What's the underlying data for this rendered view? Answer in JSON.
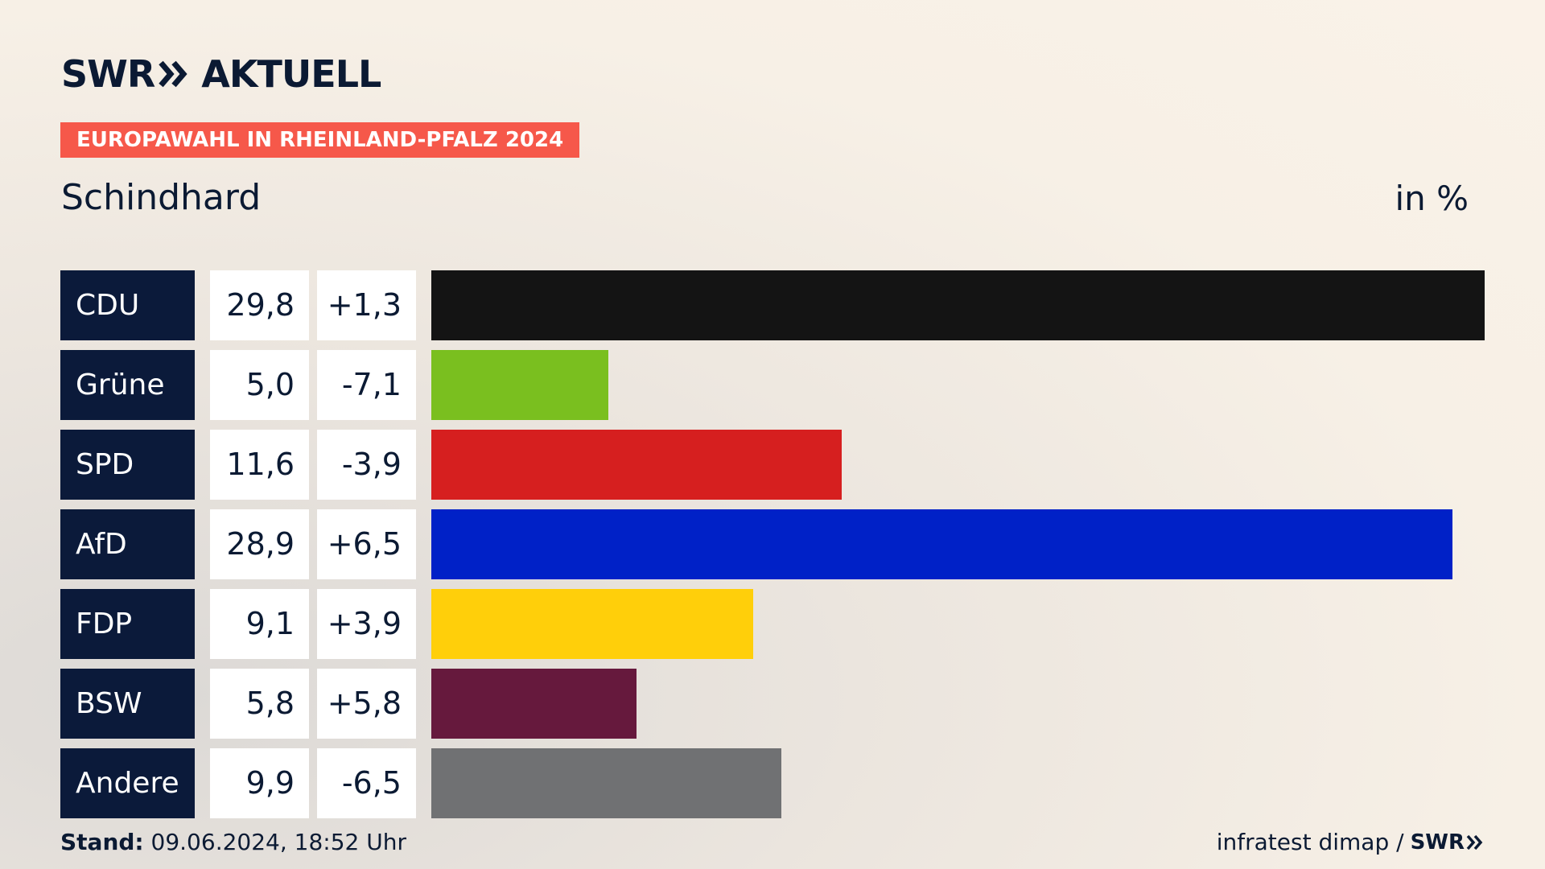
{
  "header": {
    "logo_left": "SWR",
    "logo_right": "AKTUELL",
    "logo_icon": "double-chevron-icon",
    "badge": "EUROPAWAHL IN RHEINLAND-PFALZ 2024",
    "location": "Schindhard",
    "unit": "in %"
  },
  "colors": {
    "badge": "#f6584a",
    "party_box": "#0b1a3a",
    "text": "#0b1a33"
  },
  "chart_data": {
    "type": "bar",
    "orientation": "horizontal",
    "categories": [
      "CDU",
      "Grüne",
      "SPD",
      "AfD",
      "FDP",
      "BSW",
      "Andere"
    ],
    "values": [
      29.8,
      5.0,
      11.6,
      28.9,
      9.1,
      5.8,
      9.9
    ],
    "value_labels": [
      "29,8",
      "5,0",
      "11,6",
      "28,9",
      "9,1",
      "5,8",
      "9,9"
    ],
    "changes": [
      1.3,
      -7.1,
      -3.9,
      6.5,
      3.9,
      5.8,
      -6.5
    ],
    "change_labels": [
      "+1,3",
      "-7,1",
      "-3,9",
      "+6,5",
      "+3,9",
      "+5,8",
      "-6,5"
    ],
    "colors": [
      "#141414",
      "#7abf1f",
      "#d61f1f",
      "#0021c7",
      "#ffcf0a",
      "#66193d",
      "#707173"
    ],
    "xlim": [
      0,
      29.8
    ]
  },
  "footer": {
    "stand_label": "Stand:",
    "stand_value": "09.06.2024, 18:52 Uhr",
    "source": "infratest dimap /",
    "source_brand": "SWR"
  }
}
